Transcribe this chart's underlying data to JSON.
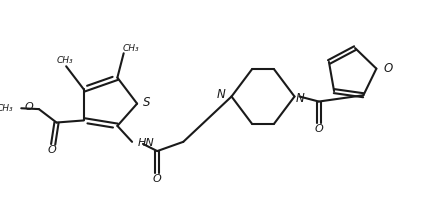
{
  "bg_color": "#ffffff",
  "line_color": "#1a1a1a",
  "line_width": 1.5,
  "fig_width": 4.33,
  "fig_height": 2.14,
  "dpi": 100,
  "xlim": [
    0,
    10
  ],
  "ylim": [
    0,
    5
  ]
}
